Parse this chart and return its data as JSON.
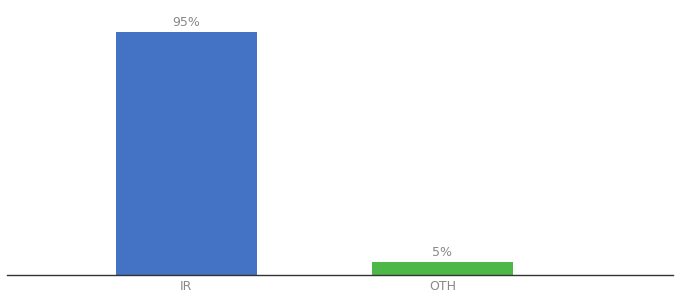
{
  "categories": [
    "IR",
    "OTH"
  ],
  "values": [
    95,
    5
  ],
  "bar_colors": [
    "#4472c4",
    "#4db848"
  ],
  "label_texts": [
    "95%",
    "5%"
  ],
  "background_color": "#ffffff",
  "text_color": "#888888",
  "ylim": [
    0,
    105
  ],
  "figsize": [
    6.8,
    3.0
  ],
  "dpi": 100,
  "label_fontsize": 9,
  "tick_fontsize": 9,
  "x_positions": [
    1,
    2
  ],
  "bar_width": 0.55,
  "xlim": [
    0.3,
    2.9
  ]
}
